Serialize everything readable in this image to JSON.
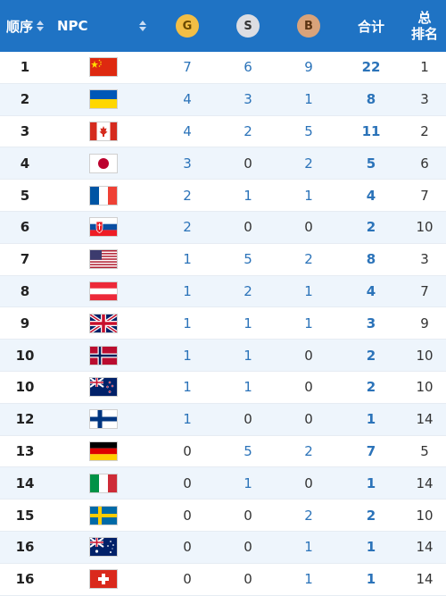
{
  "header": {
    "order_label": "顺序",
    "npc_label": "NPC",
    "gold_label": "G",
    "silver_label": "S",
    "bronze_label": "B",
    "total_label": "合计",
    "overall_line1": "总",
    "overall_line2": "排名"
  },
  "rows": [
    {
      "rank": "1",
      "flag": "china",
      "g": "7",
      "s": "6",
      "b": "9",
      "total": "22",
      "overall": "1"
    },
    {
      "rank": "2",
      "flag": "ukraine",
      "g": "4",
      "s": "3",
      "b": "1",
      "total": "8",
      "overall": "3"
    },
    {
      "rank": "3",
      "flag": "canada",
      "g": "4",
      "s": "2",
      "b": "5",
      "total": "11",
      "overall": "2"
    },
    {
      "rank": "4",
      "flag": "japan",
      "g": "3",
      "s": "0",
      "b": "2",
      "total": "5",
      "overall": "6"
    },
    {
      "rank": "5",
      "flag": "france",
      "g": "2",
      "s": "1",
      "b": "1",
      "total": "4",
      "overall": "7"
    },
    {
      "rank": "6",
      "flag": "slovakia",
      "g": "2",
      "s": "0",
      "b": "0",
      "total": "2",
      "overall": "10"
    },
    {
      "rank": "7",
      "flag": "usa",
      "g": "1",
      "s": "5",
      "b": "2",
      "total": "8",
      "overall": "3"
    },
    {
      "rank": "8",
      "flag": "austria",
      "g": "1",
      "s": "2",
      "b": "1",
      "total": "4",
      "overall": "7"
    },
    {
      "rank": "9",
      "flag": "uk",
      "g": "1",
      "s": "1",
      "b": "1",
      "total": "3",
      "overall": "9"
    },
    {
      "rank": "10",
      "flag": "norway",
      "g": "1",
      "s": "1",
      "b": "0",
      "total": "2",
      "overall": "10"
    },
    {
      "rank": "10",
      "flag": "new-zealand",
      "g": "1",
      "s": "1",
      "b": "0",
      "total": "2",
      "overall": "10"
    },
    {
      "rank": "12",
      "flag": "finland",
      "g": "1",
      "s": "0",
      "b": "0",
      "total": "1",
      "overall": "14"
    },
    {
      "rank": "13",
      "flag": "germany",
      "g": "0",
      "s": "5",
      "b": "2",
      "total": "7",
      "overall": "5"
    },
    {
      "rank": "14",
      "flag": "italy",
      "g": "0",
      "s": "1",
      "b": "0",
      "total": "1",
      "overall": "14"
    },
    {
      "rank": "15",
      "flag": "sweden",
      "g": "0",
      "s": "0",
      "b": "2",
      "total": "2",
      "overall": "10"
    },
    {
      "rank": "16",
      "flag": "australia",
      "g": "0",
      "s": "0",
      "b": "1",
      "total": "1",
      "overall": "14"
    },
    {
      "rank": "16",
      "flag": "switzerland",
      "g": "0",
      "s": "0",
      "b": "1",
      "total": "1",
      "overall": "14"
    }
  ],
  "colors": {
    "header_bg": "#1f73c4",
    "value_blue": "#2b73b9",
    "row_alt": "#eef5fc"
  }
}
